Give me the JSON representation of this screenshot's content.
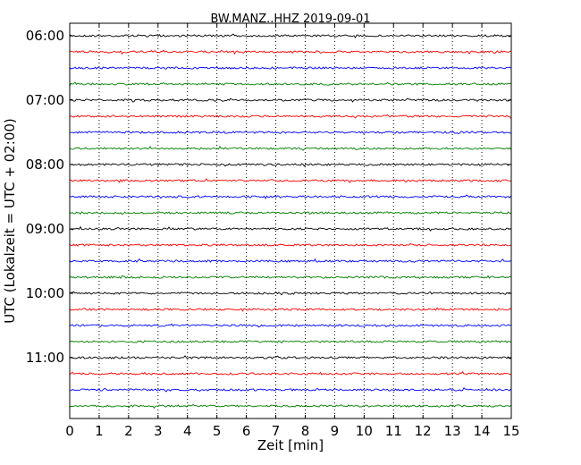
{
  "chart_data": {
    "type": "line",
    "title": "BW.MANZ..HHZ 2019-09-01",
    "xlabel": "Zeit  [min]",
    "ylabel": "UTC (Lokalzeit = UTC + 02:00)",
    "xlim": [
      0,
      15
    ],
    "x_ticks": [
      "0",
      "1",
      "2",
      "3",
      "4",
      "5",
      "6",
      "7",
      "8",
      "9",
      "10",
      "11",
      "12",
      "13",
      "14",
      "15"
    ],
    "y_ticks": [
      "06:00",
      "07:00",
      "08:00",
      "09:00",
      "10:00",
      "11:00"
    ],
    "grid": "vertical-dotted",
    "trace_colors": [
      "#000000",
      "#ff0000",
      "#0000ff",
      "#008000"
    ],
    "trace_starts": [
      "06:00",
      "06:15",
      "06:30",
      "06:45",
      "07:00",
      "07:15",
      "07:30",
      "07:45",
      "08:00",
      "08:15",
      "08:30",
      "08:45",
      "09:00",
      "09:15",
      "09:30",
      "09:45",
      "10:00",
      "10:15",
      "10:30",
      "10:45",
      "11:00",
      "11:15",
      "11:30",
      "11:45"
    ]
  }
}
